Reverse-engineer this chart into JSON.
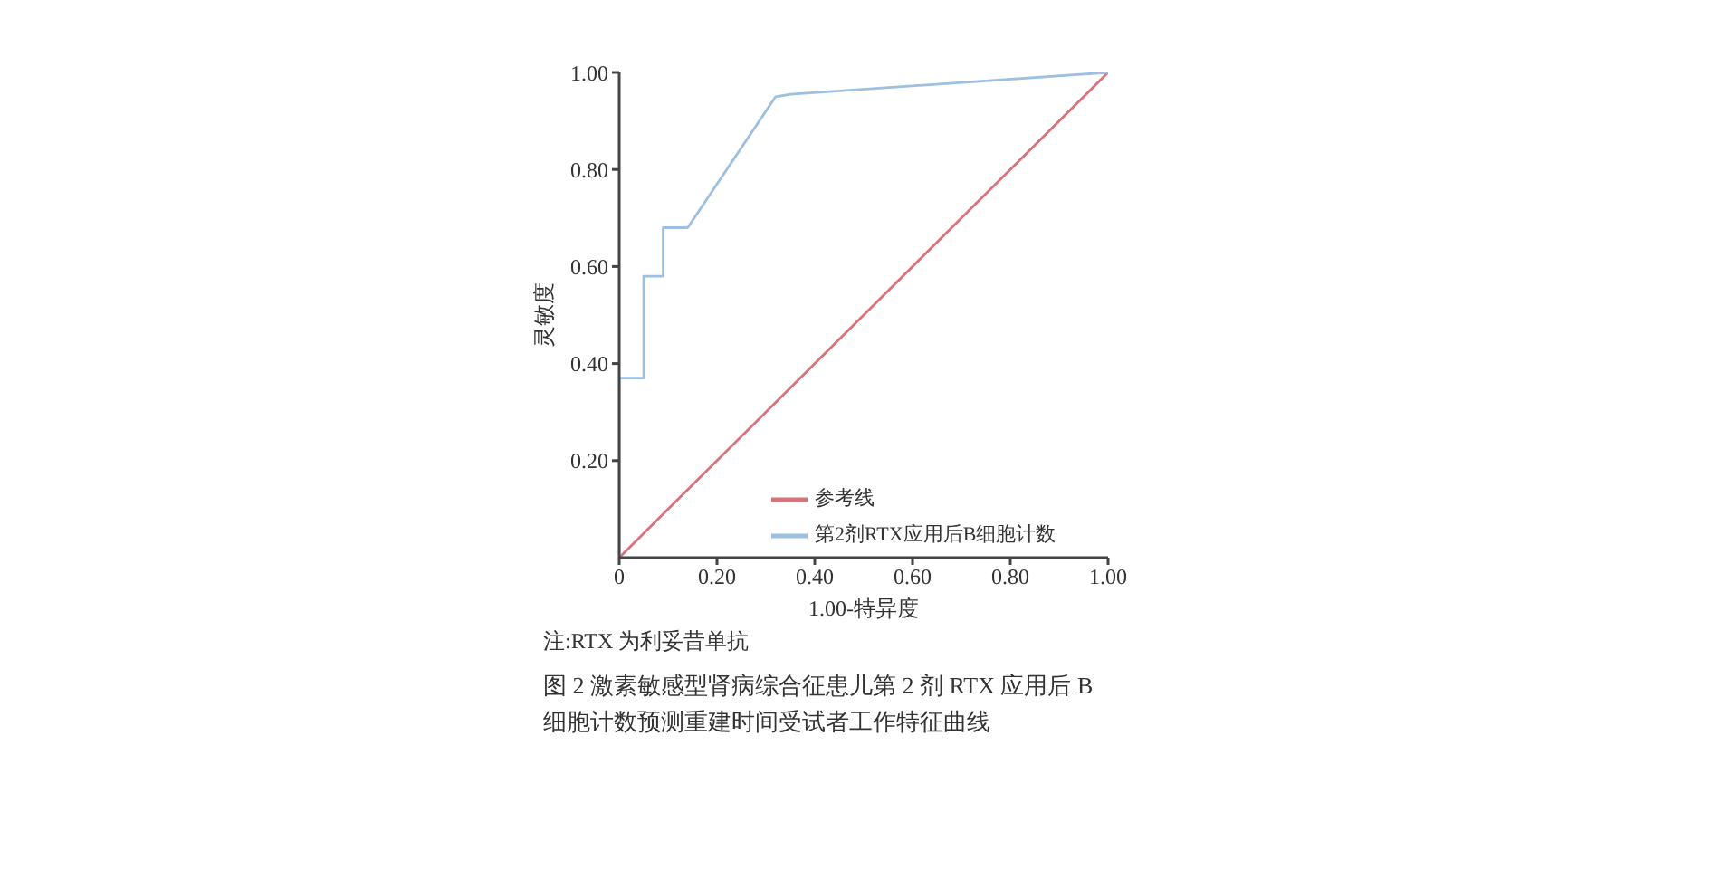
{
  "chart_data": {
    "type": "line",
    "xlabel": "1.00-特异度",
    "ylabel": "灵敏度",
    "xlim": [
      0,
      1
    ],
    "ylim": [
      0,
      1
    ],
    "xticks": [
      0,
      {
        "value": 0.2,
        "label": "0.20"
      },
      {
        "value": 0.4,
        "label": "0.40"
      },
      {
        "value": 0.6,
        "label": "0.60"
      },
      {
        "value": 0.8,
        "label": "0.80"
      },
      {
        "value": 1,
        "label": "1.00"
      }
    ],
    "yticks": [
      {
        "value": 0.2,
        "label": "0.20"
      },
      {
        "value": 0.4,
        "label": "0.40"
      },
      {
        "value": 0.6,
        "label": "0.60"
      },
      {
        "value": 0.8,
        "label": "0.80"
      },
      {
        "value": 1,
        "label": "1.00"
      }
    ],
    "legend": "bottom right",
    "marker": "none",
    "line_style": "solid",
    "series": [
      {
        "name": "参考线",
        "color": "#d9737a",
        "x": [
          0,
          1
        ],
        "values": [
          0,
          1
        ]
      },
      {
        "name": "第2剂RTX应用后B细胞计数",
        "color": "#9dbfe0",
        "x": [
          0,
          0,
          0.05,
          0.05,
          0.09,
          0.09,
          0.14,
          0.32,
          0.35,
          1
        ],
        "values": [
          0,
          0.37,
          0.37,
          0.58,
          0.58,
          0.68,
          0.68,
          0.95,
          0.955,
          1
        ]
      }
    ],
    "annotations": [
      "注:RTX 为利妥昔单抗",
      "图 2 激素敏感型肾病综合征患儿第 2 剂 RTX 应用后 B 细胞计数预测重建时间受试者工作特征曲线"
    ]
  }
}
